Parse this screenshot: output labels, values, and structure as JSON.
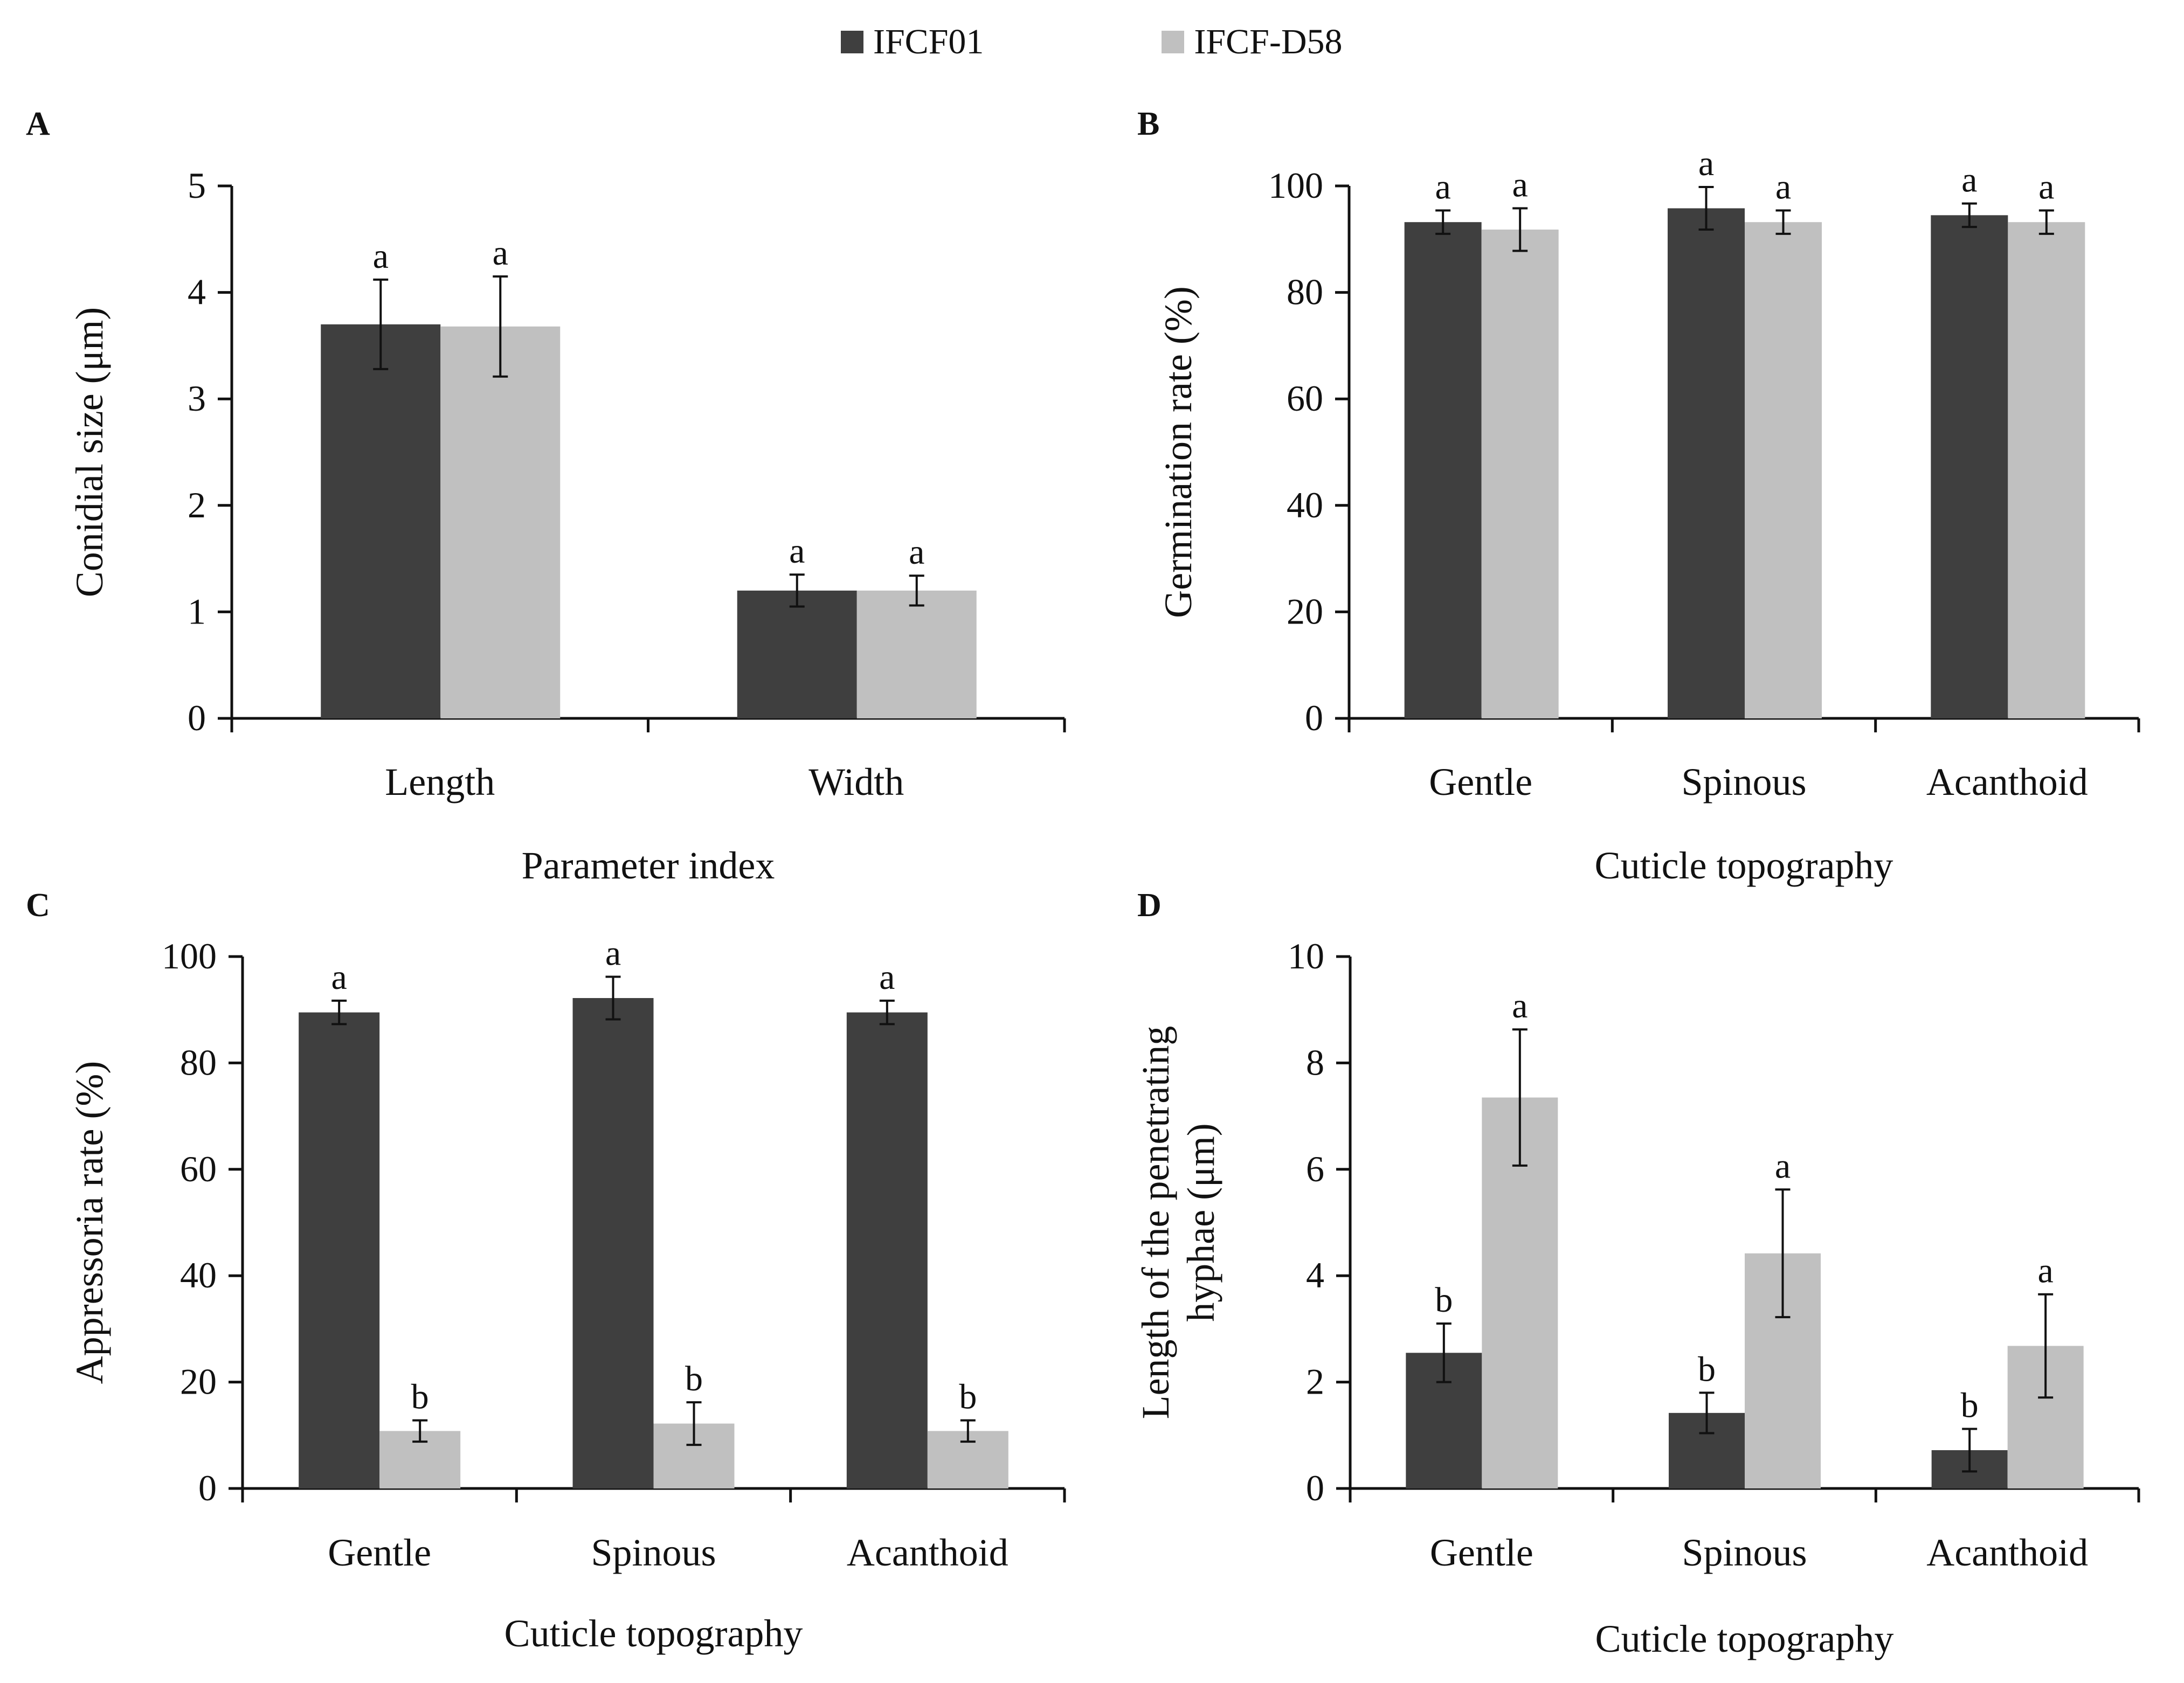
{
  "legend": {
    "items": [
      {
        "name": "IFCF01",
        "color": "#3f3f3f"
      },
      {
        "name": "IFCF-D58",
        "color": "#c0c0c0"
      }
    ]
  },
  "chart_data": [
    {
      "panel": "A",
      "type": "bar",
      "categories": [
        "Length",
        "Width"
      ],
      "series": [
        {
          "name": "IFCF01",
          "values": [
            3.7,
            1.2
          ],
          "errors": [
            0.42,
            0.15
          ],
          "letters": [
            "a",
            "a"
          ]
        },
        {
          "name": "IFCF-D58",
          "values": [
            3.68,
            1.2
          ],
          "errors": [
            0.47,
            0.14
          ],
          "letters": [
            "a",
            "a"
          ]
        }
      ],
      "xlabel": "Parameter index",
      "ylabel": "Conidial size (μm)",
      "ylim": [
        0,
        5
      ],
      "yticks": [
        0,
        1,
        2,
        3,
        4,
        5
      ]
    },
    {
      "panel": "B",
      "type": "bar",
      "categories": [
        "Gentle",
        "Spinous",
        "Acanthoid"
      ],
      "series": [
        {
          "name": "IFCF01",
          "values": [
            93.2,
            95.8,
            94.5
          ],
          "errors": [
            2.2,
            4.0,
            2.2
          ],
          "letters": [
            "a",
            "a",
            "a"
          ]
        },
        {
          "name": "IFCF-D58",
          "values": [
            91.8,
            93.2,
            93.2
          ],
          "errors": [
            4.0,
            2.2,
            2.2
          ],
          "letters": [
            "a",
            "a",
            "a"
          ]
        }
      ],
      "xlabel": "Cuticle topography",
      "ylabel": "Germination rate (%)",
      "ylim": [
        0,
        100
      ],
      "yticks": [
        0,
        20,
        40,
        60,
        80,
        100
      ]
    },
    {
      "panel": "C",
      "type": "bar",
      "categories": [
        "Gentle",
        "Spinous",
        "Acanthoid"
      ],
      "series": [
        {
          "name": "IFCF01",
          "values": [
            89.5,
            92.2,
            89.5
          ],
          "errors": [
            2.2,
            4.0,
            2.2
          ],
          "letters": [
            "a",
            "a",
            "a"
          ]
        },
        {
          "name": "IFCF-D58",
          "values": [
            10.8,
            12.2,
            10.8
          ],
          "errors": [
            2.0,
            4.0,
            2.0
          ],
          "letters": [
            "b",
            "b",
            "b"
          ]
        }
      ],
      "xlabel": "Cuticle topography",
      "ylabel": "Appressoria rate (%)",
      "ylim": [
        0,
        100
      ],
      "yticks": [
        0,
        20,
        40,
        60,
        80,
        100
      ]
    },
    {
      "panel": "D",
      "type": "bar",
      "categories": [
        "Gentle",
        "Spinous",
        "Acanthoid"
      ],
      "series": [
        {
          "name": "IFCF01",
          "values": [
            2.55,
            1.42,
            0.72
          ],
          "errors": [
            0.55,
            0.38,
            0.4
          ],
          "letters": [
            "b",
            "b",
            "b"
          ]
        },
        {
          "name": "IFCF-D58",
          "values": [
            7.35,
            4.42,
            2.68
          ],
          "errors": [
            1.28,
            1.2,
            0.97
          ],
          "letters": [
            "a",
            "a",
            "a"
          ]
        }
      ],
      "xlabel": "Cuticle topography",
      "ylabel": [
        "Length of the penetrating",
        "hyphae (μm)"
      ],
      "ylim": [
        0,
        10
      ],
      "yticks": [
        0,
        2,
        4,
        6,
        8,
        10
      ]
    }
  ]
}
